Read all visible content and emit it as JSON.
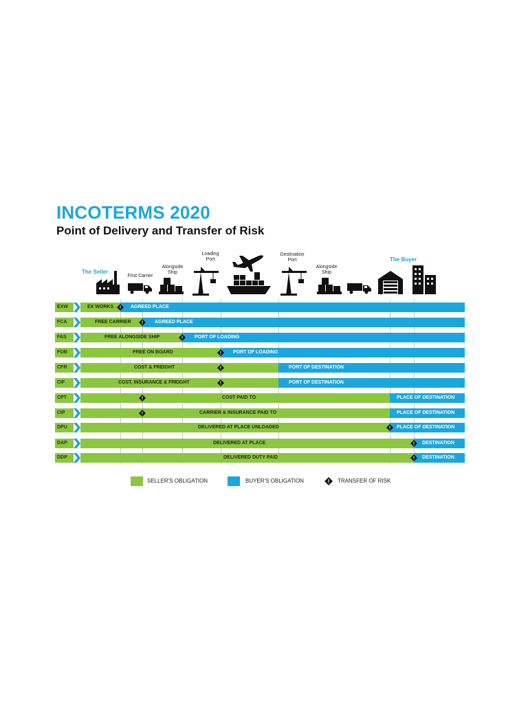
{
  "title": "INCOTERMS 2020",
  "subtitle": "Point of Delivery and Transfer of Risk",
  "parties": {
    "seller": "The Seller",
    "buyer": "The Buyer"
  },
  "positions": {
    "first_carrier": "First Carrier",
    "alongside_ship_1": [
      "Alongside",
      "Ship"
    ],
    "loading_port": [
      "Loading",
      "Port"
    ],
    "destination_port": [
      "Destination",
      "Port"
    ],
    "alongside_ship_2": [
      "Alongside",
      "Ship"
    ]
  },
  "icons": [
    "factory-icon",
    "truck-icon",
    "boxes-icon",
    "crane-icon",
    "airplane-icon",
    "cargo-ship-icon",
    "crane-icon",
    "boxes-icon",
    "truck-icon",
    "warehouse-icon",
    "office-buildings-icon"
  ],
  "colors": {
    "seller": "#8cc63f",
    "buyer": "#1ba6de",
    "title": "#1ba6de"
  },
  "rows": [
    {
      "code": "EXW",
      "seller_label": "EX WORKS",
      "buyer_label": "AGREED PLACE"
    },
    {
      "code": "FCA",
      "seller_label": "FREE CARRIER",
      "buyer_label": "AGREED PLACE"
    },
    {
      "code": "FAS",
      "seller_label": "FREE ALONGSIDE SHIP",
      "buyer_label": "PORT OF LOADING"
    },
    {
      "code": "FOB",
      "seller_label": "FREE  ON BOARD",
      "buyer_label": "PORT OF LOADING"
    },
    {
      "code": "CFR",
      "seller_label": "COST & FREIGHT",
      "buyer_label": "PORT OF DESTINATION"
    },
    {
      "code": "CIF",
      "seller_label": "COST, INSURANCE & FREIGHT",
      "buyer_label": "PORT OF DESTINATION"
    },
    {
      "code": "CPT",
      "seller_label": "COST PAID TO",
      "buyer_label": "PLACE OF DESTINATION"
    },
    {
      "code": "CIP",
      "seller_label": "CARRIER & INSURANCE PAID TO",
      "buyer_label": "PLACE OF DESTINATION"
    },
    {
      "code": "DPU",
      "seller_label": "DELIVERED AT PLACE UNLOADED",
      "buyer_label": "PLACE OF DESTINATION"
    },
    {
      "code": "DAP",
      "seller_label": "DELIVERED AT PLACE",
      "buyer_label": "DESTINATION"
    },
    {
      "code": "DDP",
      "seller_label": "DELIVERED DUTY PAID",
      "buyer_label": "DESTINATION"
    }
  ],
  "legend": {
    "seller": "SELLER'S OBLIGATION",
    "buyer": "BUYER'S OBLIGATION",
    "risk": "TRANSFER OF RISK"
  }
}
